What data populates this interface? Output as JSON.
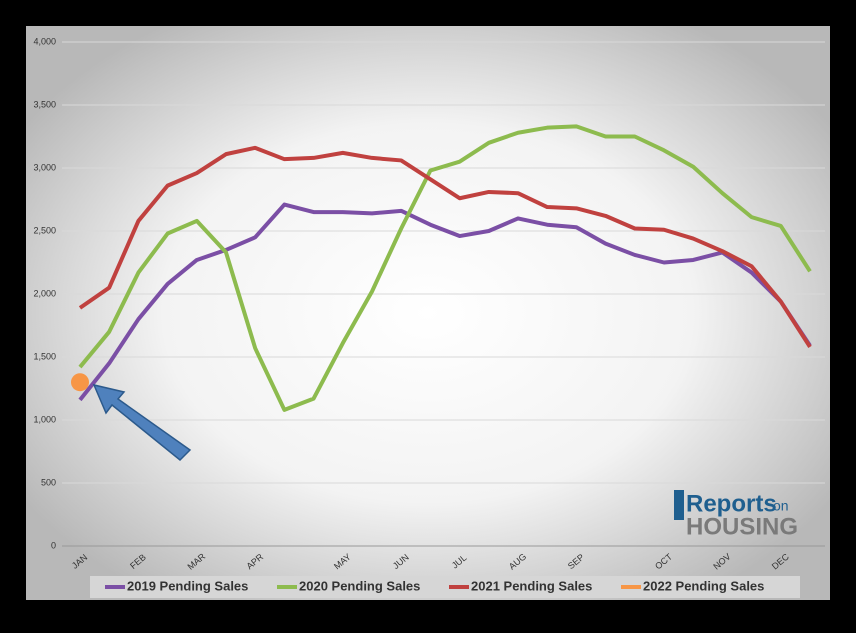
{
  "chart_data": {
    "type": "line",
    "categories": [
      "JAN",
      null,
      "FEB",
      null,
      "MAR",
      null,
      "APR",
      null,
      null,
      "MAY",
      null,
      "JUN",
      null,
      "JUL",
      null,
      "AUG",
      null,
      "SEP",
      null,
      null,
      "OCT",
      null,
      "NOV",
      null,
      "DEC",
      null
    ],
    "ylim": [
      0,
      4000
    ],
    "yticks": [
      0,
      500,
      {
        "value": 1000,
        "label": "1,000"
      },
      {
        "value": 1500,
        "label": "1,500"
      },
      {
        "value": 2000,
        "label": "2,000"
      },
      {
        "value": 2500,
        "label": "2,500"
      },
      {
        "value": 3000,
        "label": "3,000"
      },
      {
        "value": 3500,
        "label": "3,500"
      },
      {
        "value": 4000,
        "label": "4,000"
      }
    ],
    "grid": true,
    "series": [
      {
        "name": "2019 Pending Sales",
        "color": "#7b4fa5",
        "values": [
          1160,
          1450,
          1800,
          2080,
          2270,
          2350,
          2450,
          2710,
          2650,
          2650,
          2640,
          2660,
          2550,
          2460,
          2500,
          2600,
          2550,
          2530,
          2400,
          2310,
          2250,
          2270,
          2330,
          2170,
          1940,
          1590
        ]
      },
      {
        "name": "2020 Pending Sales",
        "color": "#8dbb4e",
        "values": [
          1420,
          1700,
          2170,
          2480,
          2580,
          2330,
          1570,
          1080,
          1170,
          1610,
          2020,
          2520,
          2980,
          3050,
          3200,
          3280,
          3320,
          3330,
          3250,
          3250,
          3140,
          3010,
          2800,
          2610,
          2540,
          2180
        ]
      },
      {
        "name": "2021 Pending Sales",
        "color": "#c0413f",
        "values": [
          1890,
          2050,
          2580,
          2860,
          2960,
          3110,
          3160,
          3070,
          3080,
          3120,
          3080,
          3060,
          2910,
          2760,
          2810,
          2800,
          2690,
          2680,
          2620,
          2520,
          2510,
          2440,
          2340,
          2220,
          1940,
          1580
        ]
      },
      {
        "name": "2022 Pending Sales",
        "color": "#f79646",
        "values": [
          1300,
          null,
          null,
          null,
          null,
          null,
          null,
          null,
          null,
          null,
          null,
          null,
          null,
          null,
          null,
          null,
          null,
          null,
          null,
          null,
          null,
          null,
          null,
          null,
          null,
          null
        ]
      }
    ]
  },
  "logo": {
    "brand": "Reports",
    "on": "on",
    "name": "HOUSING"
  }
}
